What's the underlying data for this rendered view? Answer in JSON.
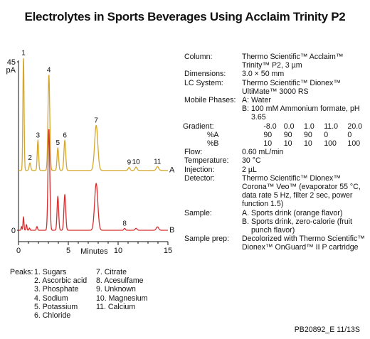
{
  "title": "Electrolytes in Sports Beverages Using Acclaim Trinity P2",
  "chart_data": {
    "type": "line",
    "title": "Electrolytes in Sports Beverages Using Acclaim Trinity P2",
    "xlabel": "Minutes",
    "ylabel": "pA",
    "xlim": [
      0,
      15
    ],
    "ylim": [
      0,
      45
    ],
    "x_ticks": [
      "0",
      "5",
      "10",
      "15"
    ],
    "y_ticks": [
      "0",
      "45"
    ],
    "grid": false,
    "colors": {
      "A": "#d4a72c",
      "B": "#d32f2f"
    },
    "series": [
      {
        "name": "A",
        "offset": 16,
        "peaks": [
          {
            "label": "1",
            "rt": 0.5,
            "height": 30.0,
            "width": 0.06
          },
          {
            "label": "2",
            "rt": 1.15,
            "height": 2.0,
            "width": 0.08
          },
          {
            "label": "3",
            "rt": 1.95,
            "height": 8.0,
            "width": 0.07
          },
          {
            "label": "4",
            "rt": 3.05,
            "height": 25.5,
            "width": 0.09
          },
          {
            "label": "5",
            "rt": 3.95,
            "height": 6.0,
            "width": 0.08
          },
          {
            "label": "6",
            "rt": 4.65,
            "height": 8.0,
            "width": 0.09
          },
          {
            "label": "7",
            "rt": 7.8,
            "height": 12.0,
            "width": 0.16
          },
          {
            "label": "9",
            "rt": 11.1,
            "height": 0.8,
            "width": 0.09
          },
          {
            "label": "10",
            "rt": 11.8,
            "height": 0.9,
            "width": 0.1
          },
          {
            "label": "11",
            "rt": 13.95,
            "height": 1.0,
            "width": 0.12
          }
        ]
      },
      {
        "name": "B",
        "offset": 0,
        "peaks": [
          {
            "label": "",
            "rt": 0.3,
            "height": 1.0,
            "width": 0.04
          },
          {
            "label": "",
            "rt": 0.5,
            "height": 3.5,
            "width": 0.05
          },
          {
            "label": "",
            "rt": 0.8,
            "height": 1.5,
            "width": 0.05
          },
          {
            "label": "",
            "rt": 1.1,
            "height": 0.6,
            "width": 0.05
          },
          {
            "label": "",
            "rt": 1.85,
            "height": 1.0,
            "width": 0.06
          },
          {
            "label": "",
            "rt": 3.05,
            "height": 27.0,
            "width": 0.09
          },
          {
            "label": "",
            "rt": 3.95,
            "height": 9.0,
            "width": 0.08
          },
          {
            "label": "",
            "rt": 4.65,
            "height": 9.5,
            "width": 0.09
          },
          {
            "label": "",
            "rt": 7.8,
            "height": 12.5,
            "width": 0.16
          },
          {
            "label": "8",
            "rt": 10.65,
            "height": 0.5,
            "width": 0.08
          },
          {
            "label": "",
            "rt": 11.8,
            "height": 0.5,
            "width": 0.1
          },
          {
            "label": "",
            "rt": 13.95,
            "height": 0.9,
            "width": 0.12
          }
        ]
      }
    ]
  },
  "conditions": {
    "column": {
      "label": "Column:",
      "value": "Thermo Scientific™ Acclaim™ Trinity™ P2, 3 µm"
    },
    "dimensions": {
      "label": "Dimensions:",
      "value": "3.0 × 50 mm"
    },
    "lc_system": {
      "label": "LC System:",
      "value": "Thermo Scientific™ Dionex™ UltiMate™ 3000 RS"
    },
    "mobile_phases": {
      "label": "Mobile Phases:",
      "a_key": "A:",
      "a_value": "Water",
      "b_key": "B:",
      "b_value": "100 mM Ammonium formate, pH 3.65"
    },
    "gradient": {
      "label": "Gradient:",
      "times": [
        "-8.0",
        "0.0",
        "1.0",
        "11.0",
        "20.0"
      ],
      "pct_a_label": "%A",
      "pct_a": [
        "90",
        "90",
        "90",
        "0",
        "0"
      ],
      "pct_b_label": "%B",
      "pct_b": [
        "10",
        "10",
        "10",
        "100",
        "100"
      ]
    },
    "flow": {
      "label": "Flow:",
      "value": "0.60 mL/min"
    },
    "temperature": {
      "label": "Temperature:",
      "value": "30 °C"
    },
    "injection": {
      "label": "Injection:",
      "value": "2 µL"
    },
    "detector": {
      "label": "Detector:",
      "value": "Thermo Scientific™ Dionex™ Corona™ Veo™  (evaporator 55 °C, data rate 5 Hz, filter 2 sec, power function 1.5)"
    },
    "sample": {
      "label": "Sample:",
      "a_key": "A.",
      "a_value": "Sports drink (orange flavor)",
      "b_key": "B.",
      "b_value": "Sports drink, zero-calorie (fruit punch flavor)"
    },
    "sample_prep": {
      "label": "Sample prep:",
      "value": "Decolorized with Thermo Scientific™ Dionex™ OnGuard™ II P cartridge"
    }
  },
  "peaks_legend": {
    "label": "Peaks:",
    "col1": [
      "1. Sugars",
      "2. Ascorbic acid",
      "3. Phosphate",
      "4. Sodium",
      "5. Potassium",
      "6. Chloride"
    ],
    "col2": [
      "7. Citrate",
      "8. Acesulfame",
      "9. Unknown",
      "10. Magnesium",
      "11. Calcium"
    ]
  },
  "doc_id": "PB20892_E 11/13S"
}
